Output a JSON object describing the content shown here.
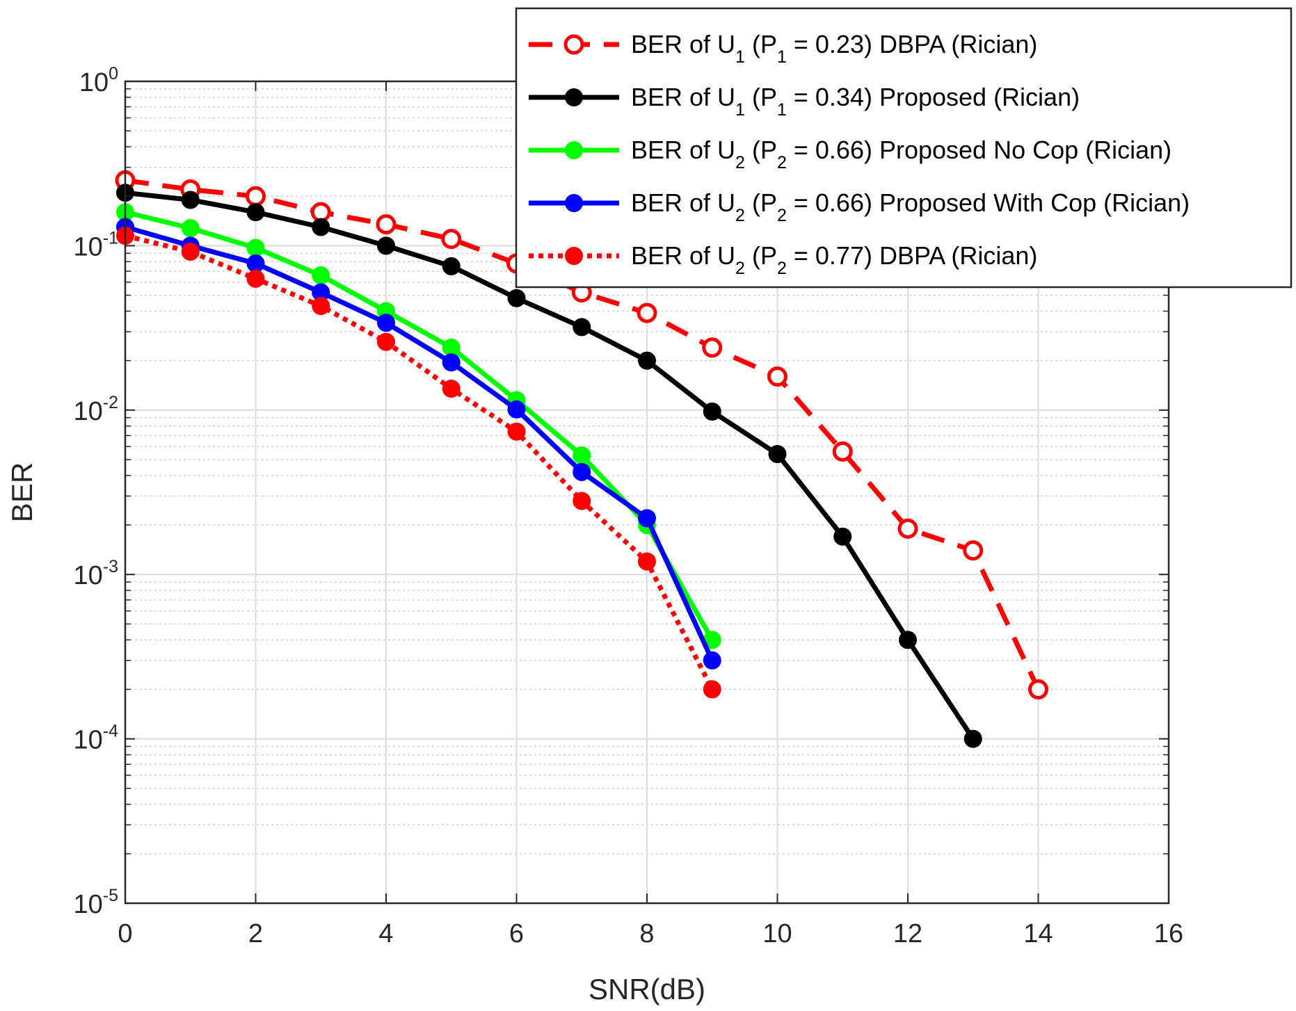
{
  "chart_data": {
    "type": "line",
    "title": "",
    "xlabel": "SNR(dB)",
    "ylabel": "BER",
    "yscale": "log",
    "xlim": [
      0,
      16
    ],
    "ylim": [
      1e-05,
      1
    ],
    "grid": true,
    "minor_grid": true,
    "legend_position": "top-right",
    "x_ticks": [
      0,
      2,
      4,
      6,
      8,
      10,
      12,
      14,
      16
    ],
    "x_tick_labels": [
      "0",
      "2",
      "4",
      "6",
      "8",
      "10",
      "12",
      "14",
      "16"
    ],
    "y_ticks": [
      {
        "value": 1,
        "base": "10",
        "exp": "0"
      },
      {
        "value": 0.1,
        "base": "10",
        "exp": "-1"
      },
      {
        "value": 0.01,
        "base": "10",
        "exp": "-2"
      },
      {
        "value": 0.001,
        "base": "10",
        "exp": "-3"
      },
      {
        "value": 0.0001,
        "base": "10",
        "exp": "-4"
      },
      {
        "value": 1e-05,
        "base": "10",
        "exp": "-5"
      }
    ],
    "series": [
      {
        "name": "BER of U1 (P1 = 0.23) DBPA (Rician)",
        "legend": {
          "t1": "BER of U",
          "s1": "1",
          "t2": " (P",
          "s2": "1",
          "t3": " = 0.23) DBPA (Rician)"
        },
        "color": "#ff0000",
        "line_style": "dashed",
        "marker": "open-circle",
        "x": [
          0,
          1,
          2,
          3,
          4,
          5,
          6,
          7,
          8,
          9,
          10,
          11,
          12,
          13,
          14
        ],
        "y": [
          0.25,
          0.22,
          0.2,
          0.16,
          0.135,
          0.11,
          0.078,
          0.052,
          0.039,
          0.024,
          0.016,
          0.0056,
          0.0019,
          0.0014,
          0.0002
        ]
      },
      {
        "name": "BER of U1 (P1 = 0.34) Proposed (Rician)",
        "legend": {
          "t1": "BER of U",
          "s1": "1",
          "t2": " (P",
          "s2": "1",
          "t3": " = 0.34) Proposed (Rician)"
        },
        "color": "#000000",
        "line_style": "solid",
        "marker": "filled-circle",
        "x": [
          0,
          1,
          2,
          3,
          4,
          5,
          6,
          7,
          8,
          9,
          10,
          11,
          12,
          13
        ],
        "y": [
          0.21,
          0.19,
          0.16,
          0.13,
          0.1,
          0.075,
          0.048,
          0.032,
          0.02,
          0.0098,
          0.0054,
          0.0017,
          0.0004,
          0.0001
        ]
      },
      {
        "name": "BER of U2 (P2 = 0.66) Proposed No Cop (Rician)",
        "legend": {
          "t1": "BER of U",
          "s1": "2",
          "t2": " (P",
          "s2": "2",
          "t3": " = 0.66) Proposed No Cop (Rician)"
        },
        "color": "#00ff00",
        "line_style": "solid",
        "marker": "filled-circle",
        "x": [
          0,
          1,
          2,
          3,
          4,
          5,
          6,
          7,
          8,
          9
        ],
        "y": [
          0.16,
          0.128,
          0.097,
          0.066,
          0.04,
          0.024,
          0.0115,
          0.0053,
          0.002,
          0.0004
        ]
      },
      {
        "name": "BER of U2 (P2 = 0.66) Proposed With Cop (Rician)",
        "legend": {
          "t1": "BER of U",
          "s1": "2",
          "t2": " (P",
          "s2": "2",
          "t3": " = 0.66) Proposed With Cop (Rician)"
        },
        "color": "#0000ff",
        "line_style": "solid",
        "marker": "filled-circle",
        "x": [
          0,
          1,
          2,
          3,
          4,
          5,
          6,
          7,
          8,
          9
        ],
        "y": [
          0.13,
          0.1,
          0.078,
          0.052,
          0.034,
          0.0195,
          0.0101,
          0.0042,
          0.0022,
          0.0003
        ]
      },
      {
        "name": "BER of U2 (P2 = 0.77) DBPA (Rician)",
        "legend": {
          "t1": "BER of U",
          "s1": "2",
          "t2": " (P",
          "s2": "2",
          "t3": " = 0.77) DBPA (Rician)"
        },
        "color": "#ff0000",
        "line_style": "dotted",
        "marker": "filled-circle",
        "x": [
          0,
          1,
          2,
          3,
          4,
          5,
          6,
          7,
          8,
          9
        ],
        "y": [
          0.115,
          0.092,
          0.063,
          0.043,
          0.026,
          0.0135,
          0.0074,
          0.0028,
          0.0012,
          0.0002
        ]
      }
    ]
  }
}
